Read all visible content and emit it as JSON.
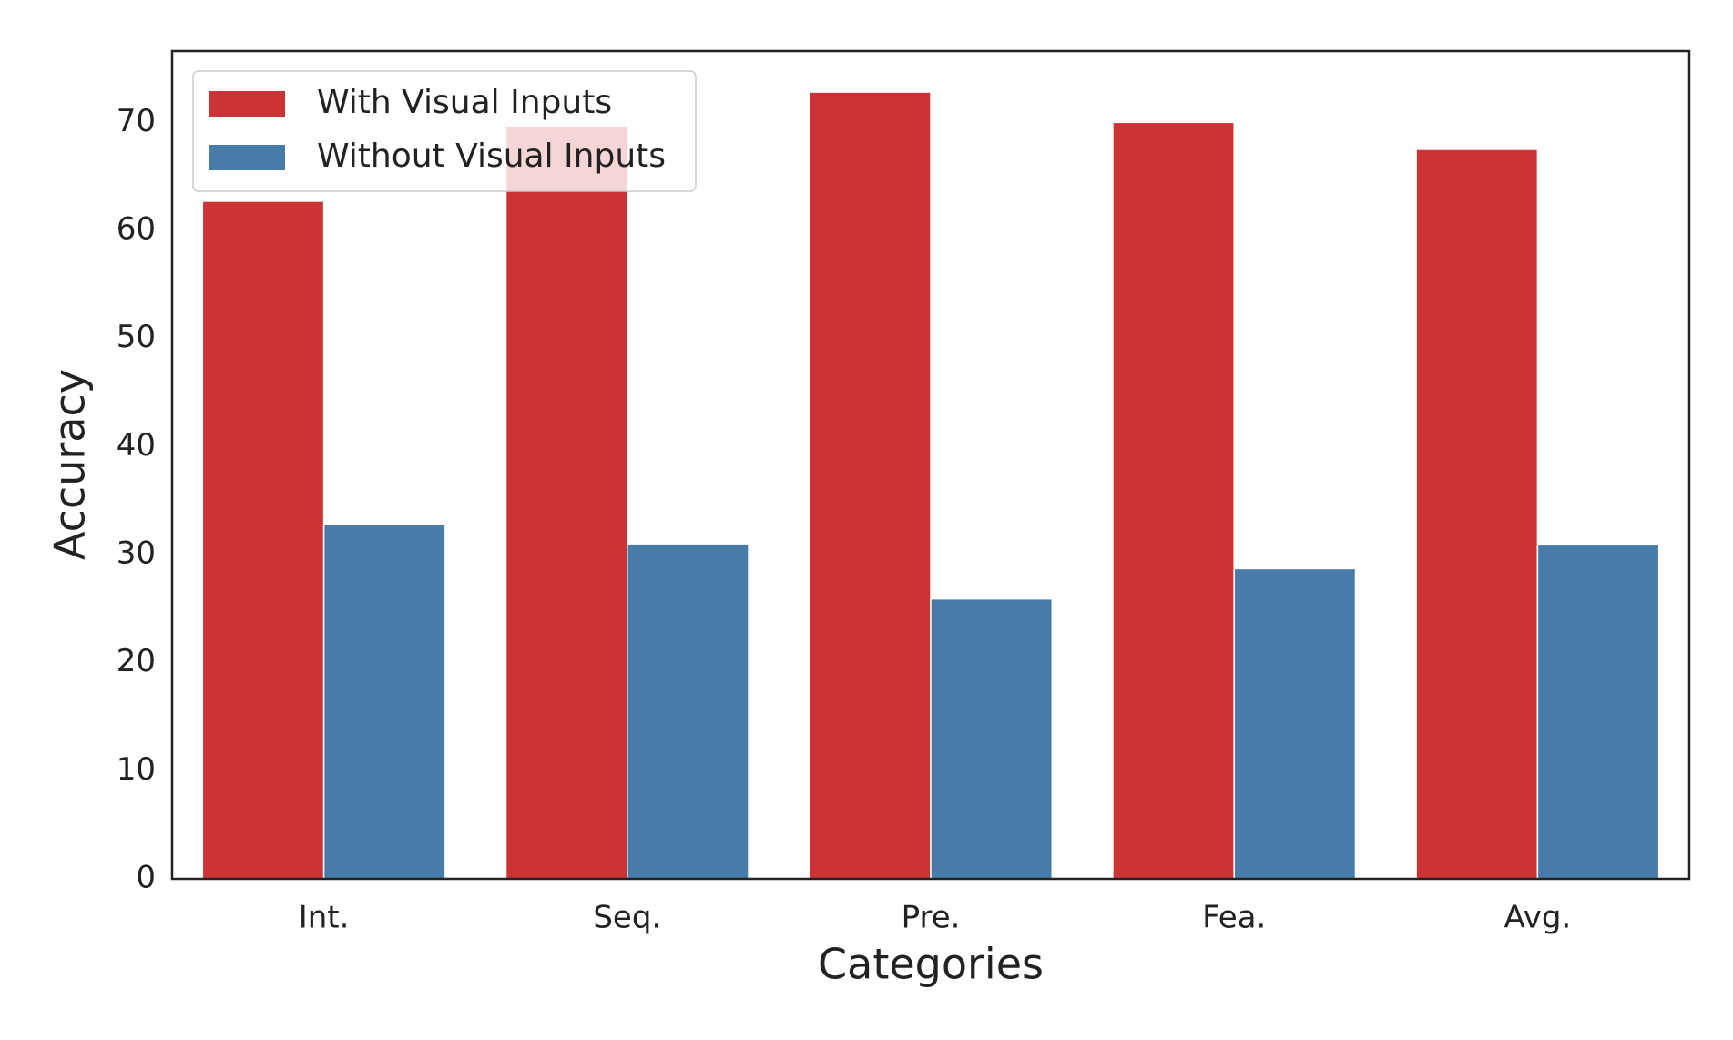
{
  "chart_data": {
    "type": "bar",
    "x_label": "Categories",
    "y_label": "Accuracy",
    "categories": [
      "Int.",
      "Seq.",
      "Pre.",
      "Fea.",
      "Avg."
    ],
    "series": [
      {
        "name": "With Visual Inputs",
        "color": "#cb3335",
        "values": [
          62.7,
          69.6,
          72.8,
          70.0,
          67.5
        ]
      },
      {
        "name": "Without Visual Inputs",
        "color": "#477ca8",
        "values": [
          32.8,
          31.0,
          25.9,
          28.7,
          30.9
        ]
      }
    ],
    "ylim": [
      0,
      76.6
    ],
    "yticks": [
      0,
      10,
      20,
      30,
      40,
      50,
      60,
      70
    ],
    "grid": false,
    "legend": "upper left"
  }
}
